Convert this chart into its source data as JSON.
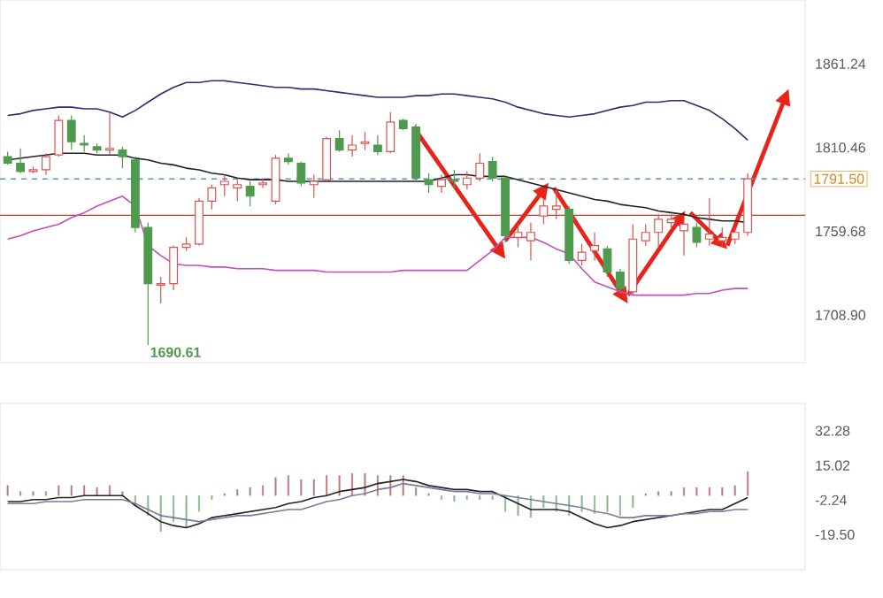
{
  "chart_data": [
    {
      "type": "candlestick",
      "categories": [
        null,
        null,
        null,
        null,
        null,
        null,
        null,
        null,
        null,
        null,
        null,
        null,
        null,
        null,
        null,
        null,
        null,
        null,
        null,
        null,
        null,
        null,
        null,
        null,
        null,
        null,
        null,
        null,
        null,
        null,
        null,
        null,
        null,
        null,
        null,
        null,
        null,
        null,
        null,
        null,
        null,
        null,
        null,
        null,
        null,
        null,
        null,
        null,
        null,
        null,
        null,
        null,
        null,
        null,
        null,
        null,
        null,
        null,
        null
      ],
      "ohlc": [
        [
          1805,
          1808,
          1800,
          1801
        ],
        [
          1801,
          1810,
          1795,
          1796
        ],
        [
          1796,
          1799,
          1795,
          1797
        ],
        [
          1797,
          1807,
          1794,
          1805
        ],
        [
          1806,
          1830,
          1805,
          1827
        ],
        [
          1827,
          1830,
          1809,
          1814
        ],
        [
          1813,
          1818,
          1808,
          1812
        ],
        [
          1811,
          1813,
          1807,
          1809
        ],
        [
          1809,
          1832,
          1806,
          1810
        ],
        [
          1809,
          1811,
          1798,
          1805
        ],
        [
          1803,
          1805,
          1759,
          1762
        ],
        [
          1762,
          1765,
          1690.61,
          1728
        ],
        [
          1727,
          1732,
          1716,
          1728
        ],
        [
          1728,
          1751,
          1724,
          1750
        ],
        [
          1750,
          1756,
          1748,
          1752
        ],
        [
          1752,
          1780,
          1751,
          1778
        ],
        [
          1778,
          1788,
          1773,
          1786
        ],
        [
          1788,
          1794,
          1781,
          1790
        ],
        [
          1786,
          1791,
          1778,
          1788
        ],
        [
          1787,
          1790,
          1775,
          1781
        ],
        [
          1788,
          1792,
          1786,
          1789
        ],
        [
          1778,
          1806,
          1776,
          1804
        ],
        [
          1804,
          1807,
          1800,
          1802
        ],
        [
          1801,
          1802,
          1787,
          1789
        ],
        [
          1788,
          1794,
          1780,
          1790
        ],
        [
          1791,
          1817,
          1790,
          1816
        ],
        [
          1816,
          1821,
          1808,
          1809
        ],
        [
          1809,
          1818,
          1805,
          1812
        ],
        [
          1813,
          1820,
          1809,
          1814
        ],
        [
          1812,
          1818,
          1806,
          1808
        ],
        [
          1808,
          1832,
          1807,
          1826
        ],
        [
          1827,
          1828,
          1821,
          1822
        ],
        [
          1823,
          1825,
          1790,
          1792
        ],
        [
          1791,
          1795,
          1783,
          1788
        ],
        [
          1787,
          1794,
          1783,
          1791
        ],
        [
          1791,
          1797,
          1785,
          1790
        ],
        [
          1788,
          1796,
          1785,
          1792
        ],
        [
          1792,
          1807,
          1790,
          1801
        ],
        [
          1802,
          1805,
          1790,
          1792
        ],
        [
          1792,
          1793,
          1753,
          1757
        ],
        [
          1756,
          1764,
          1750,
          1759
        ],
        [
          1754,
          1765,
          1742,
          1759
        ],
        [
          1769,
          1780,
          1764,
          1775
        ],
        [
          1773,
          1786,
          1767,
          1775
        ],
        [
          1773,
          1775,
          1740,
          1742
        ],
        [
          1742,
          1752,
          1739,
          1747
        ],
        [
          1748,
          1759,
          1742,
          1751
        ],
        [
          1749,
          1751,
          1732,
          1735
        ],
        [
          1735,
          1737,
          1722,
          1725
        ],
        [
          1723,
          1764,
          1721,
          1755
        ],
        [
          1754,
          1764,
          1751,
          1759
        ],
        [
          1759,
          1770,
          1750,
          1767
        ],
        [
          1765,
          1770,
          1762,
          1767
        ],
        [
          1760,
          1768,
          1745,
          1764
        ],
        [
          1762,
          1765,
          1750,
          1753
        ],
        [
          1755,
          1780,
          1751,
          1758
        ],
        [
          1754,
          1762,
          1750,
          1756
        ],
        [
          1755,
          1762,
          1752,
          1759
        ],
        [
          1759,
          1795,
          1757,
          1791.5
        ]
      ],
      "colors": [
        "#4e9a4e",
        "#4e9a4e",
        "#d9534f",
        "#d9534f",
        "#d9534f",
        "#4e9a4e",
        "#4e9a4e",
        "#4e9a4e",
        "#d9534f",
        "#4e9a4e",
        "#4e9a4e",
        "#4e9a4e",
        "#d9534f",
        "#d9534f",
        "#d9534f",
        "#d9534f",
        "#d9534f",
        "#d9534f",
        "#d9534f",
        "#4e9a4e",
        "#d9534f",
        "#d9534f",
        "#4e9a4e",
        "#4e9a4e",
        "#d9534f",
        "#d9534f",
        "#4e9a4e",
        "#d9534f",
        "#d9534f",
        "#4e9a4e",
        "#d9534f",
        "#4e9a4e",
        "#4e9a4e",
        "#4e9a4e",
        "#d9534f",
        "#4e9a4e",
        "#d9534f",
        "#d9534f",
        "#4e9a4e",
        "#4e9a4e",
        "#d9534f",
        "#d9534f",
        "#d9534f",
        "#d9534f",
        "#4e9a4e",
        "#d9534f",
        "#d9534f",
        "#4e9a4e",
        "#4e9a4e",
        "#d9534f",
        "#d9534f",
        "#d9534f",
        "#d9534f",
        "#d9534f",
        "#4e9a4e",
        "#d9534f",
        "#d9534f",
        "#d9534f",
        "#d9534f"
      ],
      "series": [
        {
          "type": "line",
          "color": "#2b2f6b",
          "values": [
            1830,
            1831,
            1833,
            1834,
            1835,
            1835,
            1834,
            1834,
            1832,
            1829,
            1833,
            1838,
            1843,
            1847,
            1850,
            1850,
            1851,
            1851,
            1850,
            1849,
            1848,
            1847,
            1847,
            1846,
            1846,
            1845,
            1844,
            1843,
            1842,
            1841,
            1841,
            1841,
            1842,
            1842,
            1843,
            1843,
            1842,
            1841,
            1840,
            1838,
            1835,
            1833,
            1831,
            1830,
            1829,
            1830,
            1831,
            1833,
            1835,
            1836,
            1838,
            1838,
            1839,
            1839,
            1836,
            1833,
            1828,
            1822,
            1815
          ]
        },
        {
          "type": "line",
          "color": "#222222",
          "values": [
            1803,
            1804,
            1805,
            1806,
            1807,
            1807,
            1807,
            1806,
            1806,
            1806,
            1804,
            1803,
            1801,
            1800,
            1798,
            1797,
            1795,
            1794,
            1792,
            1791,
            1791,
            1791,
            1790,
            1790,
            1790,
            1790,
            1790,
            1790,
            1790,
            1790,
            1790,
            1790,
            1790,
            1790,
            1792,
            1794,
            1794,
            1793,
            1793,
            1793,
            1791,
            1789,
            1787,
            1785,
            1783,
            1781,
            1779,
            1778,
            1776,
            1775,
            1774,
            1772,
            1771,
            1770,
            1768,
            1767,
            1766,
            1766,
            1765
          ]
        },
        {
          "type": "line",
          "color": "#c04fc0",
          "values": [
            1755,
            1757,
            1760,
            1762,
            1764,
            1768,
            1771,
            1775,
            1778,
            1781,
            1775,
            1751,
            1745,
            1740,
            1739,
            1739,
            1738,
            1738,
            1737,
            1737,
            1737,
            1736,
            1736,
            1736,
            1736,
            1735,
            1735,
            1735,
            1735,
            1735,
            1735,
            1736,
            1736,
            1736,
            1736,
            1736,
            1736,
            1742,
            1748,
            1756,
            1756,
            1756,
            1753,
            1749,
            1746,
            1737,
            1729,
            1726,
            1723,
            1721,
            1721,
            1721,
            1721,
            1721,
            1722,
            1722,
            1724,
            1725,
            1725
          ]
        }
      ],
      "ylim": [
        1680,
        1900
      ],
      "yticks": [
        1861.24,
        1810.46,
        1759.68,
        {
          "value": 1708.9,
          "label": "1708.90"
        }
      ],
      "ref_lines": [
        {
          "axis": "y",
          "value": 1791.5,
          "label": "1791.50",
          "color": "#5b8fd0",
          "line_style": "dashed"
        },
        {
          "axis": "y",
          "value": 1769.4,
          "color": "#c0392b",
          "line_style": "solid"
        }
      ],
      "annotations": [
        "1690.61"
      ],
      "tick_labels": "y"
    },
    {
      "type": "bar",
      "categories": [
        null,
        null,
        null,
        null,
        null,
        null,
        null,
        null,
        null,
        null,
        null,
        null,
        null,
        null,
        null,
        null,
        null,
        null,
        null,
        null,
        null,
        null,
        null,
        null,
        null,
        null,
        null,
        null,
        null,
        null,
        null,
        null,
        null,
        null,
        null,
        null,
        null,
        null,
        null,
        null,
        null,
        null,
        null,
        null,
        null,
        null,
        null,
        null,
        null,
        null,
        null,
        null,
        null,
        null,
        null,
        null,
        null,
        null,
        null
      ],
      "series": [
        {
          "type": "bar",
          "values": [
            5,
            2,
            2,
            2,
            5,
            5,
            5,
            4,
            5,
            2,
            -5,
            -10,
            -18,
            -13,
            -16,
            -8,
            -2,
            1,
            3,
            4,
            5,
            9,
            10,
            8,
            8,
            10,
            10,
            11,
            11,
            10,
            10,
            10,
            4,
            1,
            -2,
            -3,
            -2,
            -2,
            -2,
            -8,
            -10,
            -11,
            -6,
            -8,
            -10,
            -8,
            -9,
            -8,
            -10,
            -6,
            1,
            2,
            2,
            4,
            4,
            4,
            4,
            5,
            12
          ],
          "colors": [
            "#b97c7c",
            "#b97c7c",
            "#b97c7c",
            "#b97c7c",
            "#b97c7c",
            "#b97c7c",
            "#b97c7c",
            "#b97c7c",
            "#b97c7c",
            "#b97c7c",
            "#8db58d",
            "#8db58d",
            "#8db58d",
            "#8db58d",
            "#8db58d",
            "#8db58d",
            "#8db58d",
            "#b97c7c",
            "#b97c7c",
            "#b97c7c",
            "#b97c7c",
            "#b97c7c",
            "#b97c7c",
            "#b97c7c",
            "#b97c7c",
            "#b97c7c",
            "#b97c7c",
            "#b97c7c",
            "#b97c7c",
            "#b97c7c",
            "#b97c7c",
            "#b97c7c",
            "#b97c7c",
            "#b97c7c",
            "#8db58d",
            "#8db58d",
            "#8db58d",
            "#8db58d",
            "#8db58d",
            "#8db58d",
            "#8db58d",
            "#8db58d",
            "#8db58d",
            "#8db58d",
            "#8db58d",
            "#8db58d",
            "#8db58d",
            "#8db58d",
            "#8db58d",
            "#8db58d",
            "#b97c7c",
            "#b97c7c",
            "#b97c7c",
            "#b97c7c",
            "#b97c7c",
            "#b97c7c",
            "#b97c7c",
            "#b97c7c",
            "#b97c7c"
          ]
        },
        {
          "type": "line",
          "color": "#222222",
          "values": [
            -3,
            -3,
            -2,
            -2,
            -1,
            -1,
            0,
            0,
            0,
            0,
            -5,
            -9,
            -13,
            -15,
            -16,
            -14,
            -11,
            -10,
            -9,
            -8,
            -7,
            -6,
            -4,
            -3,
            -1,
            0,
            2,
            3,
            4,
            6,
            7,
            8,
            7,
            5,
            4,
            3,
            3,
            2,
            2,
            -1,
            -4,
            -7,
            -7,
            -7,
            -8,
            -11,
            -14,
            -16,
            -15,
            -13,
            -12,
            -11,
            -10,
            -9,
            -8,
            -7,
            -7,
            -4,
            -1
          ]
        },
        {
          "type": "line",
          "color": "#7a7aa0",
          "values": [
            -4,
            -4,
            -4,
            -3,
            -3,
            -3,
            -2,
            -2,
            -2,
            -2,
            -4,
            -7,
            -10,
            -11,
            -12,
            -13,
            -12,
            -11,
            -10,
            -10,
            -9,
            -8,
            -7,
            -7,
            -5,
            -3,
            -2,
            0,
            1,
            3,
            4,
            6,
            5,
            4,
            3,
            2,
            2,
            1,
            1,
            0,
            -1,
            -2,
            -3,
            -4,
            -5,
            -6,
            -8,
            -9,
            -11,
            -11,
            -10,
            -10,
            -10,
            -9,
            -9,
            -8,
            -8,
            -7,
            -7
          ]
        }
      ],
      "ylim": [
        -37,
        46
      ],
      "yticks": [
        32.28,
        15.02,
        -2.24,
        {
          "value": -19.5,
          "label": "-19.50"
        }
      ],
      "tick_labels": "y"
    }
  ]
}
